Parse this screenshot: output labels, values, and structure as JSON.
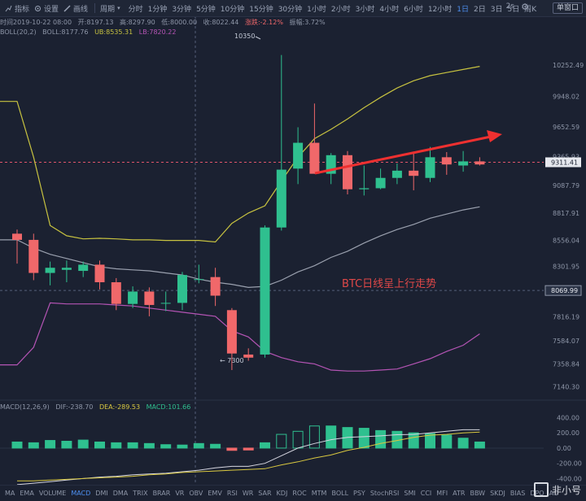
{
  "toolbar": {
    "indicator_label": "指标",
    "settings_label": "设置",
    "draw_label": "画线",
    "period_label": "周期",
    "periods": [
      "分时",
      "1分钟",
      "3分钟",
      "5分钟",
      "10分钟",
      "15分钟",
      "30分钟",
      "1小时",
      "2小时",
      "3小时",
      "4小时",
      "6小时",
      "12小时",
      "1日",
      "2日",
      "3日",
      "5日",
      "周K"
    ],
    "active_period": "1日",
    "interval": "2s",
    "window_button": "单窗口"
  },
  "info": {
    "time": "时间2019-10-22 08:00",
    "open": "开:8197.13",
    "high": "高:8297.90",
    "low": "低:8000.00",
    "close": "收:8022.44",
    "change": "涨跌:-2.12%",
    "amplitude": "振幅:3.72%",
    "boll_name": "BOLL(20,2)",
    "boll_mid": "BOLL:8177.76",
    "boll_ub": "UB:8535.31",
    "boll_lb": "LB:7820.22"
  },
  "macd_info": {
    "name": "MACD(12,26,9)",
    "dif": "DIF:-238.70",
    "dea": "DEA:-289.53",
    "macd": "MACD:101.66"
  },
  "annotations": {
    "high_marker": "10350",
    "low_marker": "7300",
    "trend_text": "BTC日线呈上行走势"
  },
  "indicators": [
    "MA",
    "EMA",
    "VOLUME",
    "MACD",
    "DMI",
    "DMA",
    "TRIX",
    "BRAR",
    "VR",
    "OBV",
    "EMV",
    "RSI",
    "WR",
    "SAR",
    "KDJ",
    "ROC",
    "MTM",
    "BOLL",
    "PSY",
    "StochRSI",
    "SMI",
    "CCI",
    "MFI",
    "ATR",
    "BBW",
    "SKDJ",
    "BIAS",
    "DPO",
    "AO"
  ],
  "active_indicator": "MACD",
  "watermark": "非小号",
  "colors": {
    "up": "#2fc08f",
    "down": "#f0686a",
    "upper_band": "#c7c240",
    "mid_band": "#9aa0ae",
    "lower_band": "#b454b4",
    "dif": "#d6d6e0",
    "dea": "#d9c840",
    "arrow": "#ee3030",
    "price_line": "#e0556a"
  },
  "chart_data": {
    "type": "candlestick",
    "price_axis_ticks": [
      10252.49,
      9948.02,
      9652.59,
      9365.93,
      9087.79,
      8817.91,
      8556.04,
      8301.95,
      7816.19,
      7584.07,
      7358.84,
      7140.3
    ],
    "price_ylim": [
      7040,
      10520
    ],
    "current_price": 9311.41,
    "crosshair_price": 8069.99,
    "candles": [
      {
        "o": 8620,
        "h": 8660,
        "l": 8330,
        "c": 8560
      },
      {
        "o": 8560,
        "h": 8620,
        "l": 8170,
        "c": 8240
      },
      {
        "o": 8240,
        "h": 8350,
        "l": 8120,
        "c": 8290
      },
      {
        "o": 8270,
        "h": 8360,
        "l": 8150,
        "c": 8290
      },
      {
        "o": 8260,
        "h": 8350,
        "l": 8200,
        "c": 8320
      },
      {
        "o": 8320,
        "h": 8360,
        "l": 8080,
        "c": 8150
      },
      {
        "o": 8150,
        "h": 8190,
        "l": 7880,
        "c": 7940
      },
      {
        "o": 7940,
        "h": 8110,
        "l": 7900,
        "c": 8060
      },
      {
        "o": 8060,
        "h": 8100,
        "l": 7820,
        "c": 7930
      },
      {
        "o": 7950,
        "h": 8060,
        "l": 7870,
        "c": 7950
      },
      {
        "o": 7950,
        "h": 8250,
        "l": 7880,
        "c": 8220
      },
      {
        "o": 8180,
        "h": 8320,
        "l": 8140,
        "c": 8180
      },
      {
        "o": 8200,
        "h": 8290,
        "l": 7920,
        "c": 8020
      },
      {
        "o": 7880,
        "h": 7900,
        "l": 7300,
        "c": 7460
      },
      {
        "o": 7450,
        "h": 7510,
        "l": 7390,
        "c": 7420
      },
      {
        "o": 7450,
        "h": 8700,
        "l": 7420,
        "c": 8680
      },
      {
        "o": 8680,
        "h": 10350,
        "l": 8650,
        "c": 9240
      },
      {
        "o": 9250,
        "h": 9650,
        "l": 9100,
        "c": 9500
      },
      {
        "o": 9500,
        "h": 9880,
        "l": 9200,
        "c": 9200
      },
      {
        "o": 9200,
        "h": 9400,
        "l": 9100,
        "c": 9380
      },
      {
        "o": 9380,
        "h": 9420,
        "l": 9000,
        "c": 9050
      },
      {
        "o": 9050,
        "h": 9280,
        "l": 8990,
        "c": 9060
      },
      {
        "o": 9060,
        "h": 9250,
        "l": 9050,
        "c": 9160
      },
      {
        "o": 9160,
        "h": 9300,
        "l": 9100,
        "c": 9230
      },
      {
        "o": 9230,
        "h": 9400,
        "l": 9040,
        "c": 9180
      },
      {
        "o": 9160,
        "h": 9460,
        "l": 9120,
        "c": 9360
      },
      {
        "o": 9360,
        "h": 9410,
        "l": 9190,
        "c": 9290
      },
      {
        "o": 9280,
        "h": 9420,
        "l": 9220,
        "c": 9320
      },
      {
        "o": 9320,
        "h": 9360,
        "l": 9280,
        "c": 9290
      }
    ],
    "upper_band": [
      9900,
      9360,
      8700,
      8600,
      8570,
      8575,
      8570,
      8560,
      8560,
      8555,
      8555,
      8555,
      8540,
      8720,
      8820,
      8890,
      9130,
      9360,
      9540,
      9630,
      9730,
      9840,
      9940,
      10030,
      10100,
      10150,
      10180,
      10210,
      10240
    ],
    "mid_band": [
      8560,
      8480,
      8420,
      8380,
      8340,
      8300,
      8280,
      8270,
      8260,
      8240,
      8220,
      8180,
      8150,
      8130,
      8100,
      8110,
      8170,
      8250,
      8310,
      8390,
      8450,
      8530,
      8600,
      8660,
      8710,
      8770,
      8810,
      8850,
      8880
    ],
    "lower_band": [
      7350,
      7520,
      7950,
      7940,
      7940,
      7940,
      7930,
      7920,
      7900,
      7880,
      7860,
      7840,
      7820,
      7680,
      7620,
      7480,
      7420,
      7380,
      7360,
      7300,
      7290,
      7290,
      7300,
      7310,
      7360,
      7410,
      7480,
      7540,
      7650
    ],
    "macd_axis_ticks": [
      400,
      200,
      0,
      -200,
      -400
    ],
    "macd_ylim": [
      -470,
      490
    ],
    "macd_hist": [
      80,
      70,
      100,
      90,
      105,
      80,
      70,
      70,
      60,
      45,
      40,
      60,
      50,
      -30,
      -25,
      70,
      180,
      220,
      290,
      290,
      270,
      260,
      230,
      220,
      200,
      190,
      170,
      130,
      80
    ],
    "dif": [
      -480,
      -460,
      -440,
      -420,
      -400,
      -380,
      -370,
      -350,
      -340,
      -330,
      -310,
      -290,
      -260,
      -240,
      -240,
      -200,
      -100,
      0,
      60,
      110,
      140,
      150,
      160,
      175,
      180,
      200,
      220,
      240,
      240
    ],
    "dea": [
      -430,
      -430,
      -420,
      -410,
      -400,
      -390,
      -380,
      -370,
      -350,
      -340,
      -320,
      -310,
      -300,
      -290,
      -280,
      -270,
      -220,
      -180,
      -130,
      -90,
      -30,
      10,
      60,
      100,
      140,
      170,
      180,
      200,
      210
    ]
  }
}
